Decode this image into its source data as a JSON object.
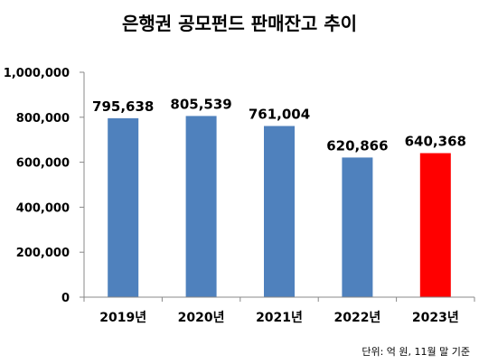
{
  "chart_data": {
    "type": "bar",
    "title": "은행권 공모펀드 판매잔고 추이",
    "categories": [
      "2019년",
      "2020년",
      "2021년",
      "2022년",
      "2023년"
    ],
    "values": [
      795638,
      805539,
      761004,
      620866,
      640368
    ],
    "data_labels": [
      "795,638",
      "805,539",
      "761,004",
      "620,866",
      "640,368"
    ],
    "y_ticks": [
      0,
      200000,
      400000,
      600000,
      800000,
      1000000
    ],
    "y_tick_labels": [
      "0",
      "200,000",
      "400,000",
      "600,000",
      "800,000",
      "1,000,000"
    ],
    "ylim": [
      0,
      1000000
    ],
    "xlabel": "",
    "ylabel": "",
    "grid": false,
    "bar_colors": [
      "#4F81BD",
      "#4F81BD",
      "#4F81BD",
      "#4F81BD",
      "#FF0000"
    ],
    "note": "단위: 억 원, 11월 말 기준"
  }
}
